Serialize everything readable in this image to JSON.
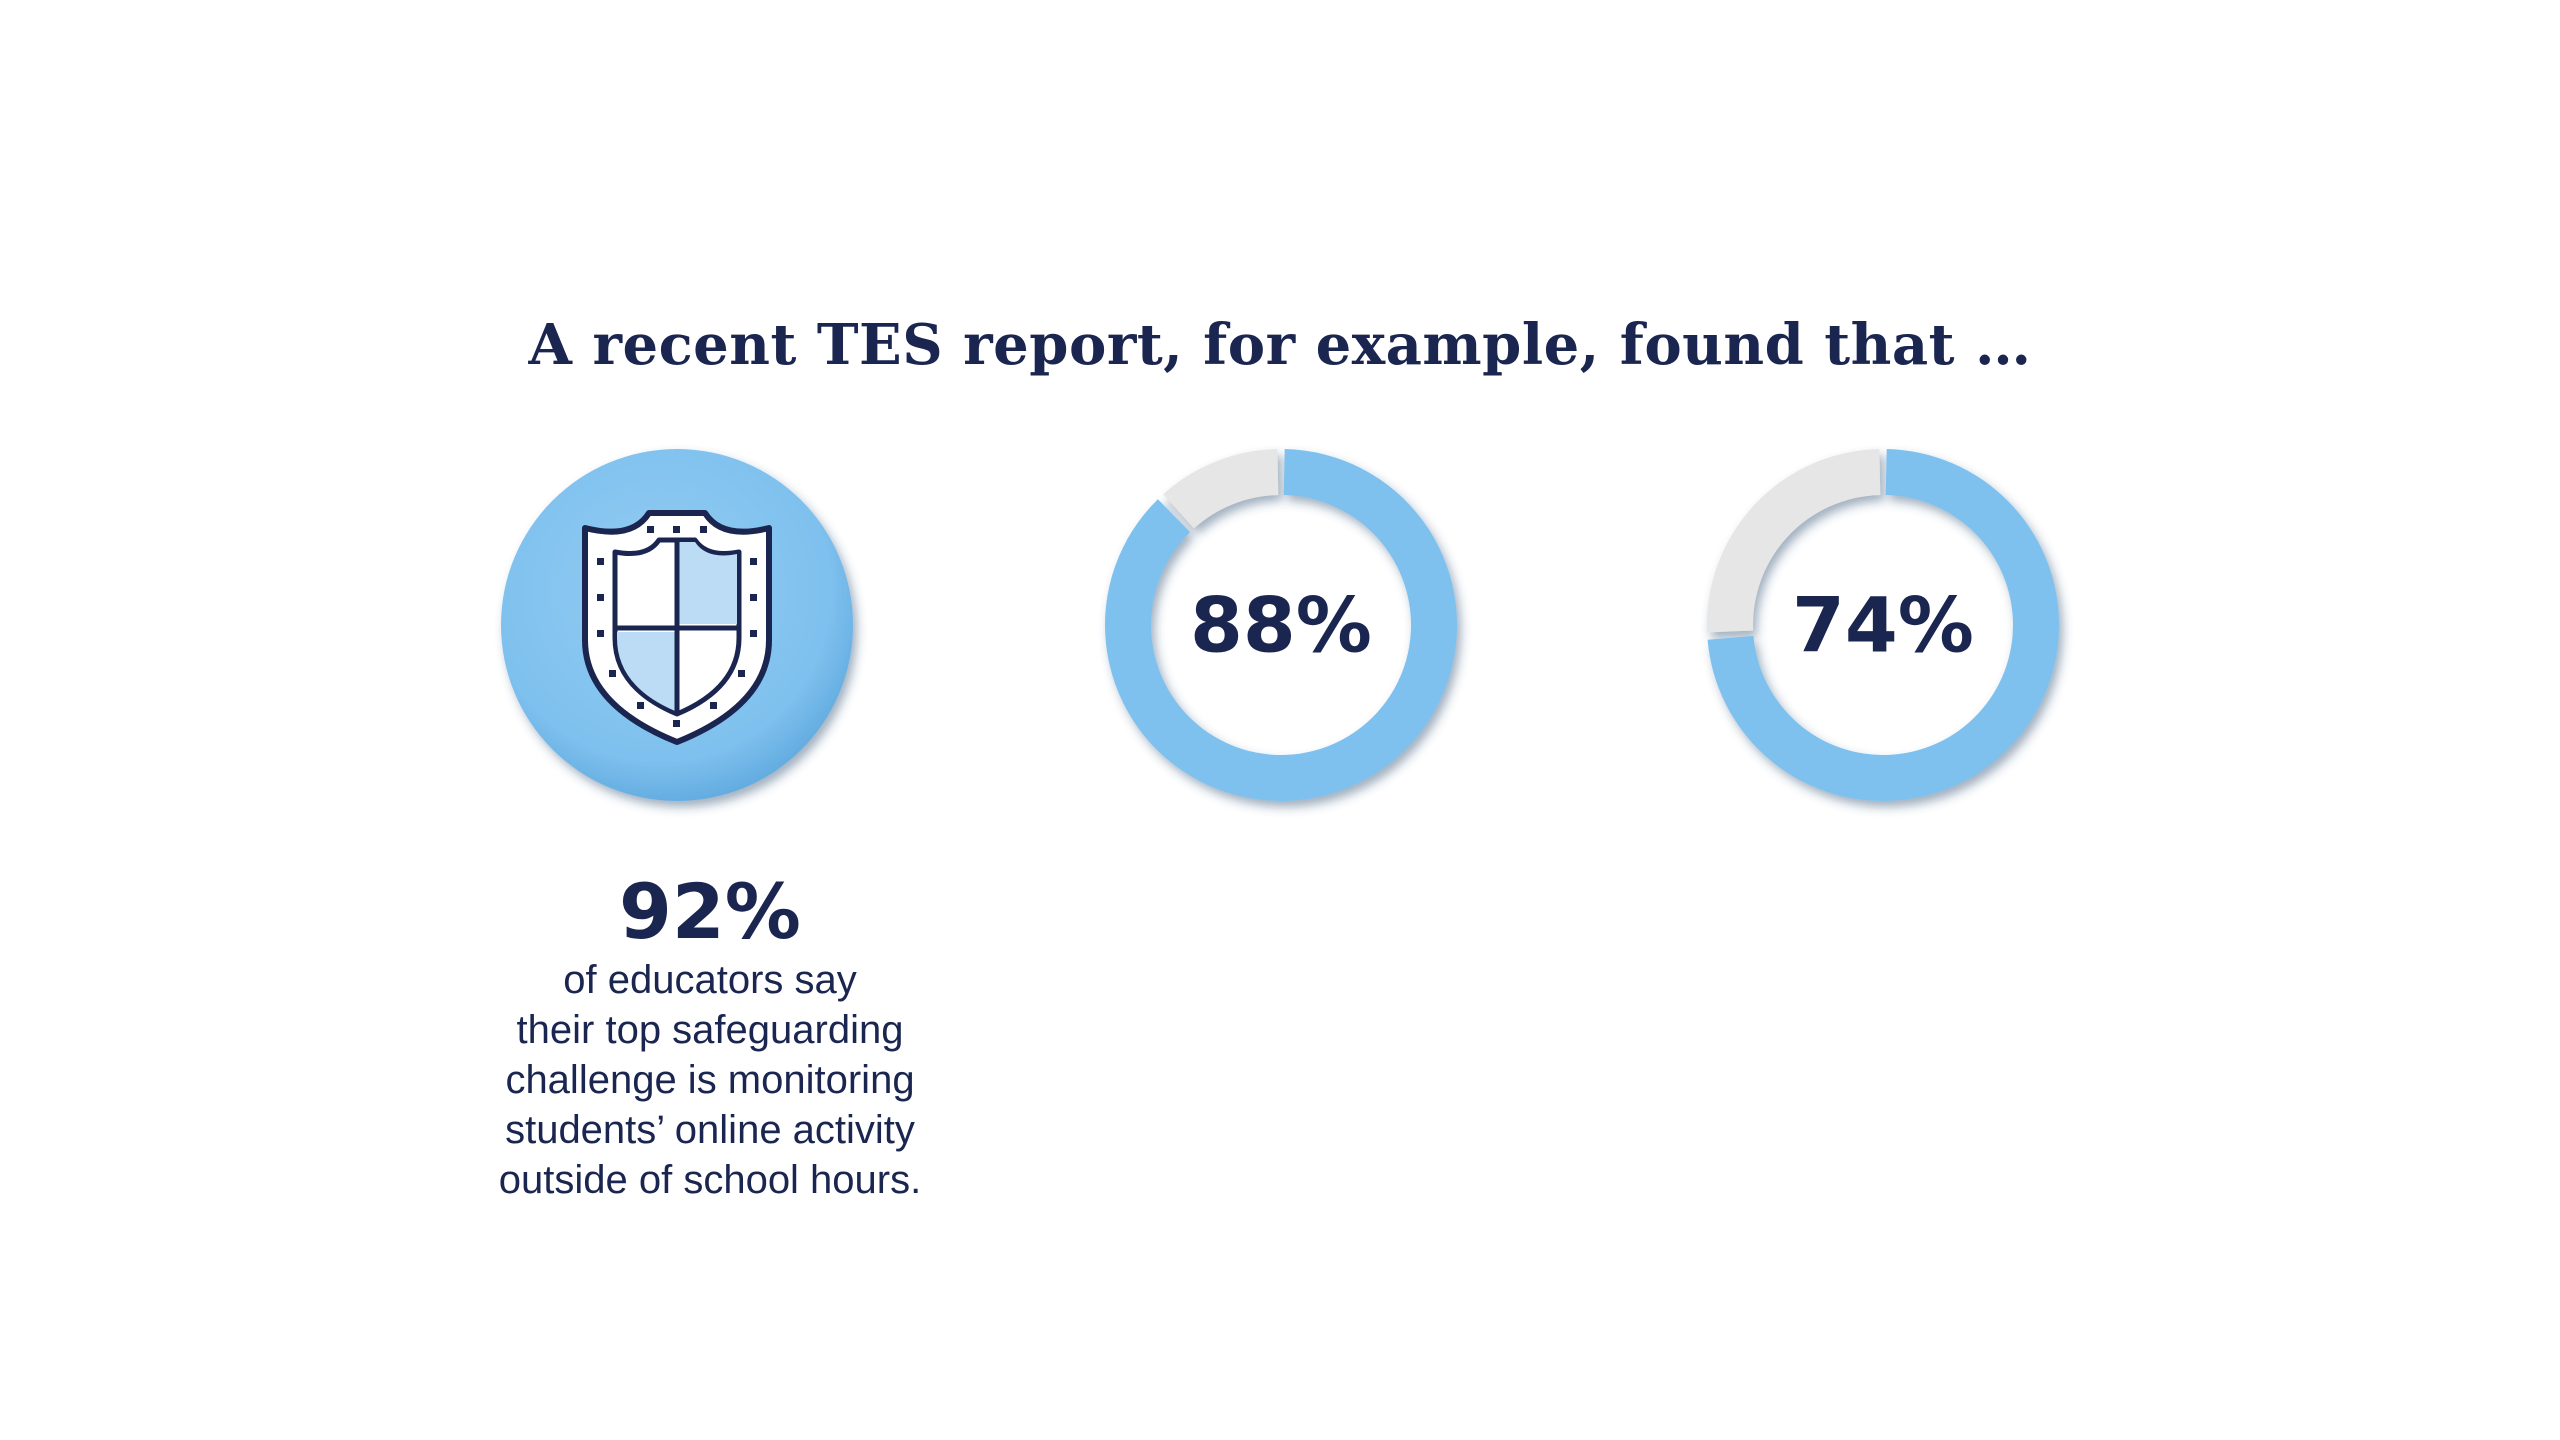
{
  "headline": "A recent TES report, for example, found that …",
  "colors": {
    "accent": "#7ec0ee",
    "accent_dark": "#4f9fd8",
    "track": "#e6e6e6",
    "text": "#1a2650"
  },
  "chart_data": [
    {
      "type": "pie",
      "variant": "icon-badge",
      "icon": "shield-icon",
      "value": 92,
      "value_label": "92%",
      "caption": [
        "of educators say",
        "their top safeguarding",
        "challenge is monitoring",
        "students’ online activity",
        "outside of school hours."
      ]
    },
    {
      "type": "pie",
      "variant": "donut",
      "value": 88,
      "value_label": "88%"
    },
    {
      "type": "pie",
      "variant": "donut",
      "value": 74,
      "value_label": "74%"
    }
  ]
}
